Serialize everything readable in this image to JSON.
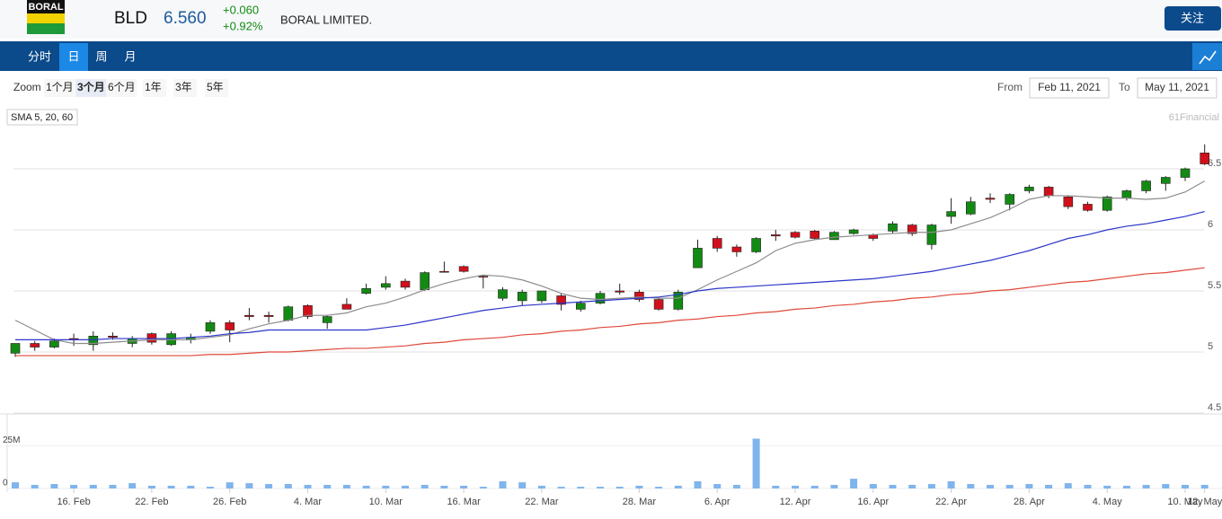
{
  "header": {
    "logo": "BORAL",
    "ticker": "BLD",
    "price": "6.560",
    "change": "+0.060",
    "change_pct": "+0.92%",
    "name": "BORAL LIMITED.",
    "follow_button": "关注"
  },
  "tabs": {
    "items": [
      "分时",
      "日",
      "周",
      "月"
    ],
    "active": 1
  },
  "toolbar": {
    "zoom_label": "Zoom",
    "zoom_options": [
      "1个月",
      "3个月",
      "6个月",
      "1年",
      "3年",
      "5年"
    ],
    "zoom_active": 1,
    "from_label": "From",
    "from_date": "Feb 11, 2021",
    "to_label": "To",
    "to_date": "May 11, 2021"
  },
  "indicator_button": "SMA 5, 20, 60",
  "watermark": "61Financial",
  "chart_data": {
    "type": "candlestick",
    "categories": [
      null,
      null,
      null,
      "16. Feb",
      null,
      null,
      null,
      "22. Feb",
      null,
      null,
      null,
      "26. Feb",
      null,
      null,
      null,
      "4. Mar",
      null,
      null,
      null,
      "10. Mar",
      null,
      null,
      null,
      "16. Mar",
      null,
      null,
      null,
      "22. Mar",
      null,
      null,
      null,
      null,
      "28. Mar",
      null,
      null,
      null,
      "6. Apr",
      null,
      null,
      null,
      "12. Apr",
      null,
      null,
      null,
      "16. Apr",
      null,
      null,
      null,
      "22. Apr",
      null,
      null,
      null,
      "28. Apr",
      null,
      null,
      null,
      "4. May",
      null,
      null,
      null,
      "10. May",
      "12. May"
    ],
    "open": [
      5.07,
      5.04,
      5.09,
      5.1,
      5.13,
      5.12,
      5.11,
      5.08,
      5.15,
      5.12,
      5.24,
      5.18,
      5.29,
      5.29,
      5.37,
      5.29,
      5.29,
      5.35,
      5.52,
      5.56,
      5.53,
      5.65,
      5.66,
      5.66,
      5.62,
      5.51,
      5.49,
      5.5,
      5.39,
      5.4,
      5.48,
      5.49,
      5.43,
      5.35,
      5.49,
      5.85,
      5.85,
      5.82,
      5.93,
      5.95,
      5.94,
      5.93,
      5.98,
      6.0,
      5.93,
      6.05,
      5.97,
      6.04,
      6.15,
      6.23,
      6.25,
      6.29,
      6.35,
      6.28,
      6.19,
      6.16,
      6.27,
      6.32,
      6.4,
      6.43,
      6.5,
      6.54
    ],
    "high": [
      5.07,
      5.09,
      5.11,
      5.15,
      5.17,
      5.16,
      5.13,
      5.16,
      5.17,
      5.15,
      5.26,
      5.26,
      5.36,
      5.33,
      5.38,
      5.39,
      5.3,
      5.44,
      5.56,
      5.62,
      5.6,
      5.66,
      5.74,
      5.71,
      5.63,
      5.53,
      5.51,
      5.5,
      5.48,
      5.42,
      5.5,
      5.56,
      5.51,
      5.44,
      5.51,
      5.92,
      5.95,
      5.88,
      5.94,
      6.0,
      5.99,
      6.0,
      5.99,
      6.01,
      5.97,
      6.07,
      6.05,
      6.05,
      6.26,
      6.27,
      6.3,
      6.3,
      6.37,
      6.36,
      6.28,
      6.23,
      6.28,
      6.33,
      6.41,
      6.44,
      6.51,
      6.7
    ],
    "low": [
      4.96,
      5.01,
      5.03,
      5.05,
      5.01,
      5.1,
      5.04,
      5.06,
      5.05,
      5.07,
      5.15,
      5.08,
      5.26,
      5.24,
      5.25,
      5.27,
      5.19,
      5.35,
      5.47,
      5.51,
      5.51,
      5.5,
      5.65,
      5.65,
      5.52,
      5.42,
      5.38,
      5.4,
      5.34,
      5.33,
      5.39,
      5.47,
      5.41,
      5.34,
      5.34,
      5.69,
      5.82,
      5.78,
      5.81,
      5.91,
      5.93,
      5.92,
      5.92,
      5.96,
      5.91,
      5.97,
      5.95,
      5.84,
      6.05,
      6.12,
      6.22,
      6.16,
      6.3,
      6.26,
      6.17,
      6.15,
      6.15,
      6.24,
      6.3,
      6.32,
      6.4,
      6.53
    ],
    "close": [
      4.99,
      5.07,
      5.04,
      5.11,
      5.06,
      5.13,
      5.07,
      5.15,
      5.06,
      5.1,
      5.17,
      5.24,
      5.3,
      5.3,
      5.26,
      5.38,
      5.24,
      5.39,
      5.48,
      5.53,
      5.58,
      5.51,
      5.66,
      5.7,
      5.62,
      5.44,
      5.42,
      5.42,
      5.46,
      5.35,
      5.4,
      5.5,
      5.49,
      5.43,
      5.35,
      5.69,
      5.93,
      5.86,
      5.82,
      5.96,
      5.98,
      5.99,
      5.92,
      5.97,
      5.96,
      5.99,
      6.04,
      5.88,
      6.11,
      6.13,
      6.26,
      6.21,
      6.32,
      6.35,
      6.27,
      6.21,
      6.16,
      6.26,
      6.32,
      6.38,
      6.43,
      6.63
    ],
    "up_color": "#d0101b",
    "down_color": "#138a13",
    "series": [
      {
        "color": "#8c8c8c",
        "values": [
          5.26,
          5.18,
          5.1,
          5.07,
          5.07,
          5.08,
          5.09,
          5.1,
          5.1,
          5.1,
          5.12,
          5.14,
          5.19,
          5.23,
          5.26,
          5.3,
          5.3,
          5.32,
          5.37,
          5.4,
          5.45,
          5.51,
          5.56,
          5.6,
          5.63,
          5.62,
          5.59,
          5.54,
          5.48,
          5.44,
          5.43,
          5.44,
          5.45,
          5.44,
          5.44,
          5.51,
          5.59,
          5.66,
          5.73,
          5.83,
          5.89,
          5.92,
          5.94,
          5.95,
          5.96,
          5.97,
          5.98,
          5.98,
          6.0,
          6.05,
          6.1,
          6.17,
          6.25,
          6.28,
          6.28,
          6.27,
          6.26,
          6.26,
          6.25,
          6.26,
          6.31,
          6.4
        ]
      },
      {
        "color": "#2b35c9",
        "values": [
          5.1,
          5.1,
          5.1,
          5.1,
          5.1,
          5.11,
          5.11,
          5.11,
          5.11,
          5.12,
          5.13,
          5.15,
          5.16,
          5.18,
          5.18,
          5.18,
          5.18,
          5.18,
          5.18,
          5.2,
          5.22,
          5.25,
          5.28,
          5.31,
          5.34,
          5.36,
          5.38,
          5.39,
          5.4,
          5.41,
          5.42,
          5.43,
          5.44,
          5.45,
          5.47,
          5.5,
          5.52,
          5.53,
          5.54,
          5.55,
          5.56,
          5.57,
          5.58,
          5.59,
          5.6,
          5.62,
          5.64,
          5.66,
          5.69,
          5.72,
          5.75,
          5.79,
          5.83,
          5.88,
          5.93,
          5.96,
          6.0,
          6.03,
          6.05,
          6.08,
          6.11,
          6.15
        ]
      },
      {
        "color": "#e0483a",
        "values": [
          4.97,
          4.97,
          4.97,
          4.97,
          4.97,
          4.97,
          4.97,
          4.97,
          4.97,
          4.97,
          4.98,
          4.98,
          4.99,
          5.0,
          5.0,
          5.01,
          5.02,
          5.03,
          5.03,
          5.04,
          5.05,
          5.07,
          5.08,
          5.1,
          5.11,
          5.12,
          5.14,
          5.15,
          5.17,
          5.18,
          5.2,
          5.21,
          5.23,
          5.24,
          5.26,
          5.27,
          5.29,
          5.3,
          5.32,
          5.33,
          5.35,
          5.36,
          5.38,
          5.39,
          5.41,
          5.42,
          5.44,
          5.45,
          5.47,
          5.48,
          5.5,
          5.51,
          5.53,
          5.55,
          5.57,
          5.58,
          5.6,
          5.62,
          5.64,
          5.65,
          5.67,
          5.69
        ]
      }
    ],
    "ylim": [
      4.5,
      6.9
    ],
    "yticks": [
      4.5,
      5,
      5.5,
      6,
      6.5
    ],
    "grid": true,
    "volume": {
      "color": "#80b4ec",
      "ylim": [
        0,
        43
      ],
      "yticks": [
        0,
        {
          "value": 25,
          "label": "25M"
        }
      ],
      "values": [
        3.6,
        2.1,
        2.6,
        2.1,
        2.1,
        2.1,
        3.1,
        1.6,
        1.6,
        1.6,
        1.0,
        3.6,
        3.1,
        2.6,
        2.6,
        2.1,
        2.1,
        2.1,
        1.6,
        1.6,
        1.6,
        2.1,
        1.6,
        1.6,
        1.0,
        4.2,
        3.6,
        1.6,
        1.0,
        1.0,
        1.0,
        1.0,
        1.6,
        1.0,
        1.6,
        4.2,
        2.6,
        2.1,
        29.1,
        1.6,
        1.6,
        1.6,
        2.1,
        5.7,
        2.6,
        2.1,
        2.1,
        2.6,
        4.2,
        2.6,
        2.1,
        2.1,
        2.6,
        2.1,
        3.1,
        2.1,
        1.6,
        1.6,
        2.1,
        2.6,
        2.1,
        2.1
      ]
    }
  }
}
